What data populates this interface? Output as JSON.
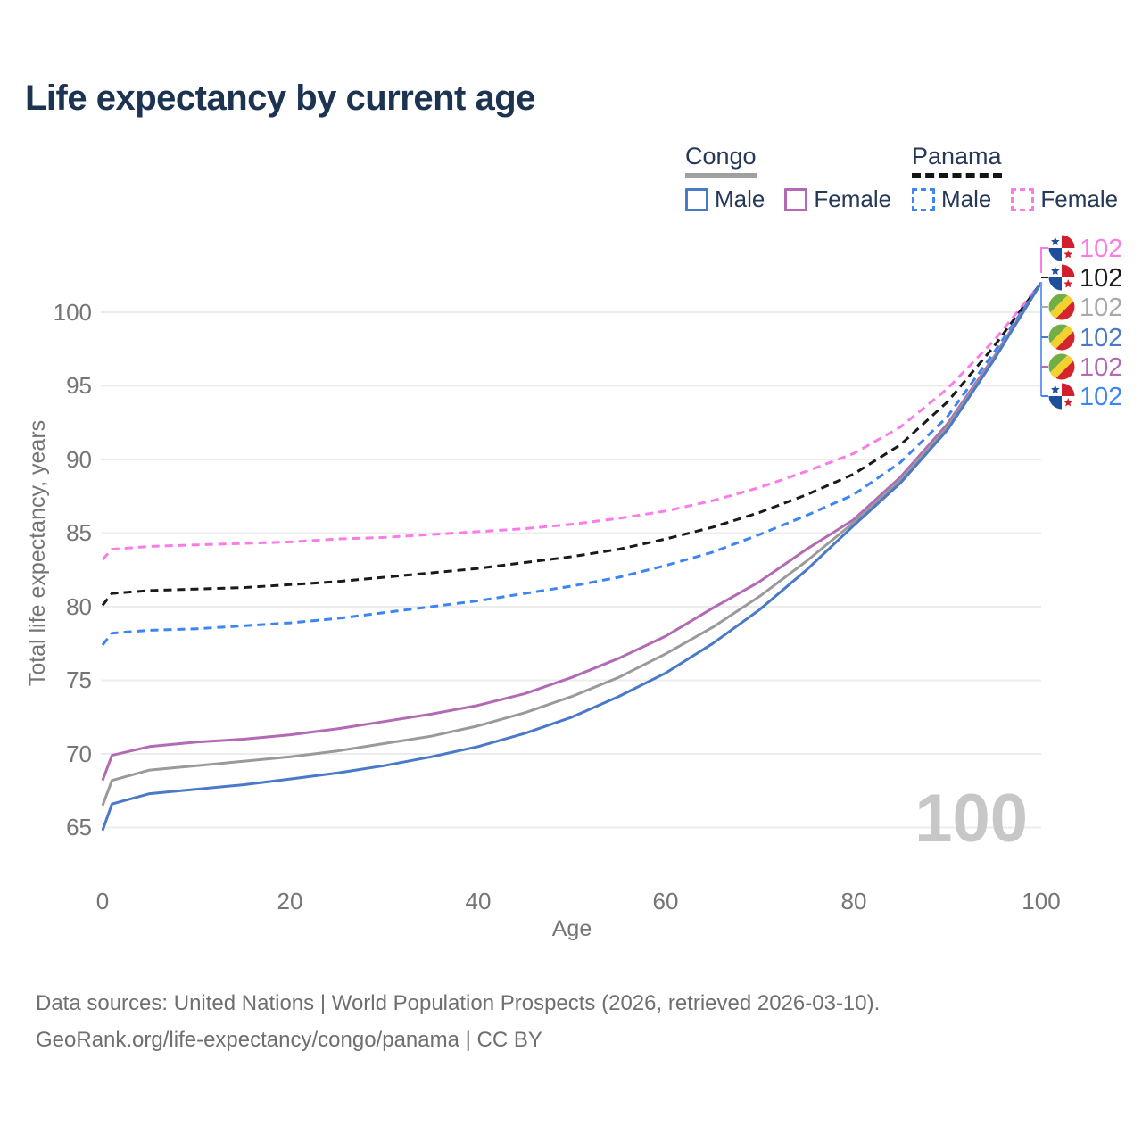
{
  "title": "Life expectancy by current age",
  "legend": {
    "groups": [
      {
        "name": "Congo",
        "style": "solid",
        "items": [
          {
            "label": "Male",
            "color": "#4a79c8"
          },
          {
            "label": "Female",
            "color": "#b36ab4"
          }
        ]
      },
      {
        "name": "Panama",
        "style": "dashed",
        "items": [
          {
            "label": "Male",
            "color": "#3d85f2"
          },
          {
            "label": "Female",
            "color": "#fb7ce8"
          }
        ]
      }
    ]
  },
  "chart_data": {
    "type": "line",
    "title": "Life expectancy by current age",
    "xlabel": "Age",
    "ylabel": "Total life expectancy, years",
    "xlim": [
      0,
      100
    ],
    "ylim": [
      63,
      103
    ],
    "xticks": [
      0,
      20,
      40,
      60,
      80,
      100
    ],
    "yticks": [
      65,
      70,
      75,
      80,
      85,
      90,
      95,
      100
    ],
    "grid": "horizontal",
    "legend_position": "top-right",
    "watermark": "100",
    "x": [
      0,
      1,
      5,
      10,
      15,
      20,
      25,
      30,
      35,
      40,
      45,
      50,
      55,
      60,
      65,
      70,
      75,
      80,
      85,
      90,
      95,
      100
    ],
    "series": [
      {
        "name": "Panama Female",
        "country": "Panama",
        "sex": "Female",
        "color": "#fb7ce8",
        "style": "dashed",
        "values": [
          83.2,
          83.9,
          84.1,
          84.2,
          84.3,
          84.4,
          84.6,
          84.7,
          84.9,
          85.1,
          85.3,
          85.6,
          86.0,
          86.5,
          87.2,
          88.1,
          89.2,
          90.4,
          92.2,
          94.8,
          98.1,
          102
        ]
      },
      {
        "name": "Panama (both sexes)",
        "country": "Panama",
        "sex": "Both",
        "color": "#1a1a1a",
        "style": "dashed",
        "values": [
          80.1,
          80.9,
          81.1,
          81.2,
          81.3,
          81.5,
          81.7,
          82.0,
          82.3,
          82.6,
          83.0,
          83.4,
          83.9,
          84.6,
          85.4,
          86.4,
          87.6,
          89.0,
          91.0,
          93.9,
          97.7,
          102
        ]
      },
      {
        "name": "Panama Male",
        "country": "Panama",
        "sex": "Male",
        "color": "#3d85f2",
        "style": "dashed",
        "values": [
          77.4,
          78.2,
          78.4,
          78.5,
          78.7,
          78.9,
          79.2,
          79.6,
          80.0,
          80.4,
          80.9,
          81.4,
          82.0,
          82.8,
          83.7,
          84.9,
          86.2,
          87.6,
          89.8,
          92.9,
          97.3,
          102
        ]
      },
      {
        "name": "Congo Female",
        "country": "Congo",
        "sex": "Female",
        "color": "#b36ab4",
        "style": "solid",
        "values": [
          68.2,
          69.9,
          70.5,
          70.8,
          71.0,
          71.3,
          71.7,
          72.2,
          72.7,
          73.3,
          74.1,
          75.2,
          76.5,
          78.0,
          79.9,
          81.7,
          83.9,
          85.9,
          88.8,
          92.4,
          97.0,
          102
        ]
      },
      {
        "name": "Congo (both sexes)",
        "country": "Congo",
        "sex": "Both",
        "color": "#9a9a9a",
        "style": "solid",
        "values": [
          66.5,
          68.2,
          68.9,
          69.2,
          69.5,
          69.8,
          70.2,
          70.7,
          71.2,
          71.9,
          72.8,
          73.9,
          75.2,
          76.8,
          78.6,
          80.7,
          83.1,
          85.7,
          88.6,
          92.2,
          96.9,
          102
        ]
      },
      {
        "name": "Congo Male",
        "country": "Congo",
        "sex": "Male",
        "color": "#4a79c8",
        "style": "solid",
        "values": [
          64.8,
          66.6,
          67.3,
          67.6,
          67.9,
          68.3,
          68.7,
          69.2,
          69.8,
          70.5,
          71.4,
          72.5,
          73.9,
          75.5,
          77.5,
          79.8,
          82.5,
          85.5,
          88.4,
          92.0,
          96.8,
          102
        ]
      }
    ],
    "end_labels": [
      {
        "series": "Panama Female",
        "value": "102",
        "color": "#fb7ce8",
        "flag": "panama"
      },
      {
        "series": "Panama (both sexes)",
        "value": "102",
        "color": "#1a1a1a",
        "flag": "panama"
      },
      {
        "series": "Congo (both sexes)",
        "value": "102",
        "color": "#a8a8a8",
        "flag": "congo"
      },
      {
        "series": "Congo Male",
        "value": "102",
        "color": "#4a79c8",
        "flag": "congo"
      },
      {
        "series": "Congo Female",
        "value": "102",
        "color": "#b36ab4",
        "flag": "congo"
      },
      {
        "series": "Panama Male",
        "value": "102",
        "color": "#3d85f2",
        "flag": "panama"
      }
    ],
    "flag_colors": {
      "panama": {
        "blue": "#1e4f9c",
        "red": "#d21f2d",
        "white": "#ffffff"
      },
      "congo": {
        "green": "#72ae44",
        "yellow": "#f2d22e",
        "red": "#d5242c"
      }
    }
  },
  "footer": {
    "line1": "Data sources: United Nations | World Population Prospects (2026, retrieved 2026-03-10).",
    "line2": "GeoRank.org/life-expectancy/congo/panama | CC BY"
  }
}
